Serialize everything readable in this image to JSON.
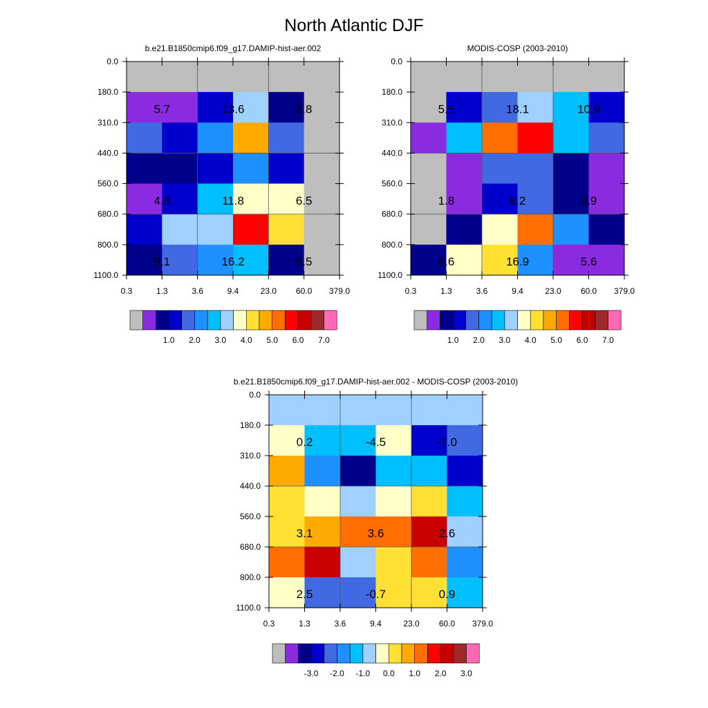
{
  "title": "North Atlantic DJF",
  "y_ticks": [
    "0.0",
    "180.0",
    "310.0",
    "440.0",
    "560.0",
    "680.0",
    "800.0",
    "1100.0"
  ],
  "x_ticks": [
    "0.3",
    "1.3",
    "3.6",
    "9.4",
    "23.0",
    "60.0",
    "379.0"
  ],
  "palette": [
    "#bebebe",
    "#8a2be2",
    "#00008b",
    "#0000cd",
    "#4169e1",
    "#1e90ff",
    "#00bfff",
    "#a0d0ff",
    "#ffffc8",
    "#ffe033",
    "#ffaa00",
    "#ff6e00",
    "#ff0000",
    "#c80000",
    "#a02828",
    "#ff69b4"
  ],
  "chart_data": [
    {
      "type": "heatmap",
      "title": "b.e21.B1850cmip6.f09_g17.DAMIP-hist-aer.002",
      "colorbar_labels": [
        "1.0",
        "2.0",
        "3.0",
        "4.0",
        "5.0",
        "6.0",
        "7.0"
      ],
      "cells": [
        [
          0,
          0,
          0,
          0,
          0,
          0
        ],
        [
          1,
          1,
          3,
          7,
          2,
          0
        ],
        [
          4,
          3,
          5,
          10,
          4,
          0
        ],
        [
          2,
          2,
          3,
          5,
          3,
          0
        ],
        [
          1,
          3,
          6,
          8,
          8,
          0
        ],
        [
          3,
          7,
          7,
          12,
          9,
          0
        ],
        [
          2,
          4,
          5,
          6,
          2,
          0
        ]
      ],
      "annotations": [
        {
          "row": 1,
          "col": 0,
          "text": "5.7"
        },
        {
          "row": 1,
          "col": 2,
          "text": "13.6"
        },
        {
          "row": 1,
          "col": 4,
          "text": "3.8"
        },
        {
          "row": 4,
          "col": 0,
          "text": "4.8"
        },
        {
          "row": 4,
          "col": 2,
          "text": "11.8"
        },
        {
          "row": 4,
          "col": 4,
          "text": "6.5"
        },
        {
          "row": 6,
          "col": 0,
          "text": "9.1"
        },
        {
          "row": 6,
          "col": 2,
          "text": "16.2"
        },
        {
          "row": 6,
          "col": 4,
          "text": "6.5"
        }
      ]
    },
    {
      "type": "heatmap",
      "title": "MODIS-COSP (2003-2010)",
      "colorbar_labels": [
        "1.0",
        "2.0",
        "3.0",
        "4.0",
        "5.0",
        "6.0",
        "7.0"
      ],
      "cells": [
        [
          0,
          0,
          0,
          0,
          0,
          0
        ],
        [
          0,
          3,
          4,
          7,
          6,
          3
        ],
        [
          1,
          6,
          11,
          12,
          6,
          4
        ],
        [
          0,
          1,
          4,
          4,
          2,
          1
        ],
        [
          0,
          1,
          3,
          4,
          2,
          1
        ],
        [
          0,
          2,
          8,
          11,
          5,
          2
        ],
        [
          2,
          8,
          9,
          5,
          1,
          1
        ]
      ],
      "annotations": [
        {
          "row": 1,
          "col": 0,
          "text": "5.5"
        },
        {
          "row": 1,
          "col": 2,
          "text": "18.1"
        },
        {
          "row": 1,
          "col": 4,
          "text": "10.9"
        },
        {
          "row": 4,
          "col": 0,
          "text": "1.8"
        },
        {
          "row": 4,
          "col": 2,
          "text": "8.2"
        },
        {
          "row": 4,
          "col": 4,
          "text": "3.9"
        },
        {
          "row": 6,
          "col": 0,
          "text": "6.6"
        },
        {
          "row": 6,
          "col": 2,
          "text": "16.9"
        },
        {
          "row": 6,
          "col": 4,
          "text": "5.6"
        }
      ]
    },
    {
      "type": "heatmap",
      "title": "b.e21.B1850cmip6.f09_g17.DAMIP-hist-aer.002 - MODIS-COSP (2003-2010)",
      "colorbar_labels": [
        "-3.0",
        "-2.0",
        "-1.0",
        "0.0",
        "1.0",
        "2.0",
        "3.0"
      ],
      "cells": [
        [
          7,
          7,
          7,
          7,
          7,
          7
        ],
        [
          8,
          6,
          6,
          8,
          3,
          4
        ],
        [
          10,
          5,
          2,
          6,
          6,
          3
        ],
        [
          9,
          8,
          7,
          8,
          9,
          6
        ],
        [
          9,
          10,
          11,
          11,
          13,
          7
        ],
        [
          11,
          13,
          7,
          9,
          11,
          5
        ],
        [
          8,
          4,
          4,
          9,
          9,
          6
        ]
      ],
      "annotations": [
        {
          "row": 1,
          "col": 0,
          "text": "0.2"
        },
        {
          "row": 1,
          "col": 2,
          "text": "-4.5"
        },
        {
          "row": 1,
          "col": 4,
          "text": "-7.0"
        },
        {
          "row": 4,
          "col": 0,
          "text": "3.1"
        },
        {
          "row": 4,
          "col": 2,
          "text": "3.6"
        },
        {
          "row": 4,
          "col": 4,
          "text": "2.6"
        },
        {
          "row": 6,
          "col": 0,
          "text": "2.5"
        },
        {
          "row": 6,
          "col": 2,
          "text": "-0.7"
        },
        {
          "row": 6,
          "col": 4,
          "text": "0.9"
        }
      ]
    }
  ]
}
